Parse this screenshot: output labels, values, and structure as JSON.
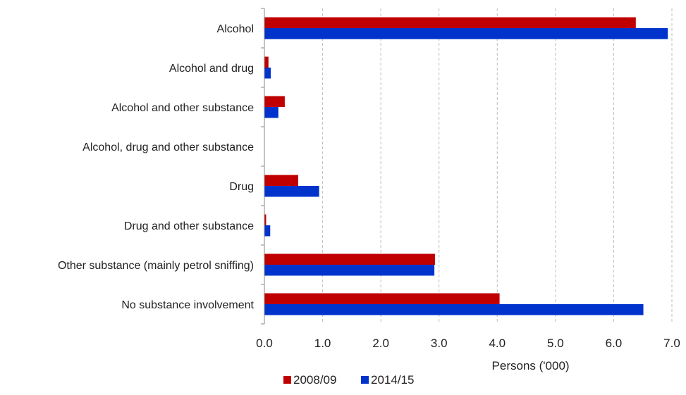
{
  "chart_data": {
    "type": "bar",
    "orientation": "horizontal",
    "title": "",
    "categories": [
      "Alcohol",
      "Alcohol and drug",
      "Alcohol and other substance",
      "Alcohol, drug and other substance",
      "Drug",
      "Drug and other substance",
      "Other substance (mainly petrol sniffing)",
      "No substance involvement"
    ],
    "series": [
      {
        "name": "2008/09",
        "color": "#C00000",
        "values": [
          6.38,
          0.07,
          0.35,
          0.0,
          0.58,
          0.03,
          2.93,
          4.04
        ]
      },
      {
        "name": "2014/15",
        "color": "#0033CC",
        "values": [
          6.93,
          0.11,
          0.24,
          0.0,
          0.94,
          0.1,
          2.92,
          6.51
        ]
      }
    ],
    "xlabel": "Persons ('000)",
    "ylabel": "",
    "xlim": [
      0,
      7
    ],
    "xticks": [
      "0.0",
      "1.0",
      "2.0",
      "3.0",
      "4.0",
      "5.0",
      "6.0",
      "7.0"
    ],
    "grid": "vertical-dashed",
    "legend": "bottom"
  }
}
